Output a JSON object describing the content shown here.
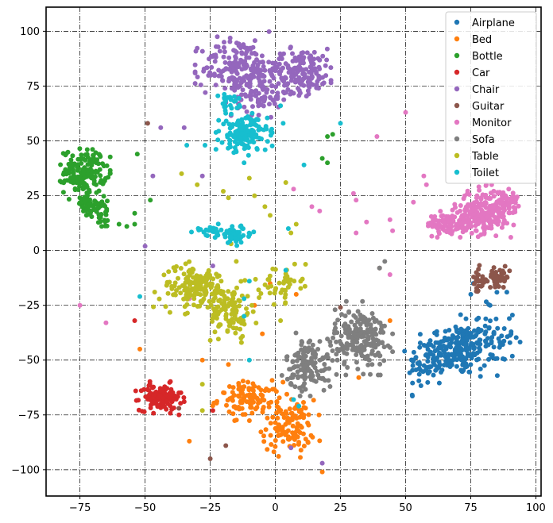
{
  "chart_data": {
    "type": "scatter",
    "title": "",
    "xlabel": "",
    "ylabel": "",
    "xlim": [
      -88,
      102
    ],
    "ylim": [
      -112,
      111
    ],
    "xticks": [
      -75,
      -50,
      -25,
      0,
      25,
      50,
      75,
      100
    ],
    "yticks": [
      -100,
      -75,
      -50,
      -25,
      0,
      25,
      50,
      75,
      100
    ],
    "xtick_labels": [
      "−75",
      "−50",
      "−25",
      "0",
      "25",
      "50",
      "75",
      "100"
    ],
    "ytick_labels": [
      "−100",
      "−75",
      "−50",
      "−25",
      "0",
      "25",
      "50",
      "75",
      "100"
    ],
    "grid": true,
    "legend_position": "top-right",
    "series": [
      {
        "name": "Airplane",
        "color": "#1f77b4",
        "count": 300,
        "clusters": [
          {
            "cx": 70,
            "cy": -45,
            "sx": 6,
            "sy": 6,
            "w": 0.55
          },
          {
            "cx": 58,
            "cy": -52,
            "sx": 3.5,
            "sy": 6,
            "w": 0.2
          },
          {
            "cx": 82,
            "cy": -40,
            "sx": 5,
            "sy": 9,
            "w": 0.25
          }
        ],
        "outliers": [
          [
            75,
            -20
          ],
          [
            76,
            -15
          ]
        ]
      },
      {
        "name": "Bed",
        "color": "#ff7f0e",
        "count": 230,
        "clusters": [
          {
            "cx": 5,
            "cy": -80,
            "sx": 5,
            "sy": 6,
            "w": 0.5
          },
          {
            "cx": -10,
            "cy": -68,
            "sx": 6,
            "sy": 4,
            "w": 0.45
          }
        ],
        "outliers": [
          [
            -18,
            -52
          ],
          [
            -8,
            -25
          ],
          [
            -5,
            -38
          ],
          [
            -33,
            -87
          ],
          [
            -52,
            -45
          ],
          [
            -28,
            -50
          ],
          [
            18,
            -101
          ],
          [
            8,
            -20
          ],
          [
            -2,
            -15
          ],
          [
            44,
            -32
          ],
          [
            32,
            -58
          ]
        ]
      },
      {
        "name": "Bottle",
        "color": "#2ca02c",
        "count": 220,
        "clusters": [
          {
            "cx": -73,
            "cy": 36,
            "sx": 4,
            "sy": 5,
            "w": 0.7
          },
          {
            "cx": -72,
            "cy": 20,
            "sx": 3,
            "sy": 3,
            "w": 0.2
          },
          {
            "cx": -66,
            "cy": 16,
            "sx": 2,
            "sy": 3,
            "w": 0.1
          }
        ],
        "outliers": [
          [
            -54,
            17
          ],
          [
            -54,
            12
          ],
          [
            -60,
            12
          ],
          [
            -57,
            11
          ],
          [
            -53,
            44
          ],
          [
            -48,
            23
          ],
          [
            18,
            42
          ],
          [
            20,
            40
          ],
          [
            20,
            52
          ],
          [
            22,
            53
          ]
        ]
      },
      {
        "name": "Car",
        "color": "#d62728",
        "count": 120,
        "clusters": [
          {
            "cx": -44,
            "cy": -67,
            "sx": 4,
            "sy": 3,
            "w": 1.0
          }
        ],
        "outliers": [
          [
            -54,
            -32
          ],
          [
            -24,
            -73
          ],
          [
            -37,
            -75
          ]
        ]
      },
      {
        "name": "Chair",
        "color": "#9467bd",
        "count": 420,
        "clusters": [
          {
            "cx": -14,
            "cy": 83,
            "sx": 7,
            "sy": 7,
            "w": 0.45
          },
          {
            "cx": 10,
            "cy": 82,
            "sx": 7,
            "sy": 5,
            "w": 0.4
          },
          {
            "cx": -5,
            "cy": 70,
            "sx": 5,
            "sy": 4,
            "w": 0.15
          }
        ],
        "outliers": [
          [
            -44,
            56
          ],
          [
            -35,
            56
          ],
          [
            -28,
            34
          ],
          [
            -47,
            34
          ],
          [
            -50,
            2
          ],
          [
            -24,
            -7
          ],
          [
            6,
            -90
          ],
          [
            18,
            -97
          ]
        ]
      },
      {
        "name": "Guitar",
        "color": "#8c564b",
        "count": 70,
        "clusters": [
          {
            "cx": 86,
            "cy": -12,
            "sx": 2,
            "sy": 2,
            "w": 0.6
          },
          {
            "cx": 78,
            "cy": -14,
            "sx": 1.5,
            "sy": 3,
            "w": 0.4
          }
        ],
        "outliers": [
          [
            -49,
            58
          ],
          [
            -37,
            -72
          ],
          [
            -19,
            -89
          ],
          [
            25,
            -26
          ],
          [
            -25,
            -95
          ],
          [
            40,
            -8
          ]
        ]
      },
      {
        "name": "Monitor",
        "color": "#e377c2",
        "count": 360,
        "clusters": [
          {
            "cx": 80,
            "cy": 18,
            "sx": 5,
            "sy": 5,
            "w": 0.55
          },
          {
            "cx": 68,
            "cy": 12,
            "sx": 5,
            "sy": 2.5,
            "w": 0.3
          },
          {
            "cx": 88,
            "cy": 22,
            "sx": 2.5,
            "sy": 2.5,
            "w": 0.15
          }
        ],
        "outliers": [
          [
            50,
            63
          ],
          [
            39,
            52
          ],
          [
            30,
            26
          ],
          [
            31,
            23
          ],
          [
            35,
            13
          ],
          [
            44,
            14
          ],
          [
            45,
            9
          ],
          [
            31,
            8
          ],
          [
            44,
            -11
          ],
          [
            53,
            22
          ],
          [
            57,
            34
          ],
          [
            58,
            30
          ],
          [
            -75,
            -25
          ],
          [
            -65,
            -33
          ],
          [
            -33,
            -22
          ],
          [
            14,
            20
          ],
          [
            17,
            18
          ],
          [
            7,
            28
          ]
        ]
      },
      {
        "name": "Sofa",
        "color": "#7f7f7f",
        "count": 330,
        "clusters": [
          {
            "cx": 33,
            "cy": -40,
            "sx": 5,
            "sy": 7,
            "w": 0.6
          },
          {
            "cx": 13,
            "cy": -52,
            "sx": 4.5,
            "sy": 6,
            "w": 0.4
          }
        ],
        "outliers": [
          [
            40,
            -8
          ],
          [
            42,
            -5
          ],
          [
            10,
            -43
          ]
        ]
      },
      {
        "name": "Table",
        "color": "#bcbd22",
        "count": 300,
        "clusters": [
          {
            "cx": -30,
            "cy": -17,
            "sx": 7,
            "sy": 5,
            "w": 0.55
          },
          {
            "cx": -17,
            "cy": -28,
            "sx": 4,
            "sy": 6,
            "w": 0.3
          },
          {
            "cx": 2,
            "cy": -15,
            "sx": 4,
            "sy": 4,
            "w": 0.15
          }
        ],
        "outliers": [
          [
            -20,
            27
          ],
          [
            -18,
            24
          ],
          [
            -10,
            33
          ],
          [
            -8,
            25
          ],
          [
            -4,
            20
          ],
          [
            -2,
            16
          ],
          [
            4,
            31
          ],
          [
            6,
            8
          ],
          [
            8,
            12
          ],
          [
            2,
            -32
          ],
          [
            -13,
            -42
          ],
          [
            -9,
            -25
          ],
          [
            -25,
            -41
          ],
          [
            -28,
            -61
          ],
          [
            -28,
            -73
          ],
          [
            -36,
            35
          ],
          [
            -30,
            30
          ],
          [
            -15,
            -5
          ],
          [
            -17,
            3
          ]
        ]
      },
      {
        "name": "Toilet",
        "color": "#17becf",
        "count": 260,
        "clusters": [
          {
            "cx": -12,
            "cy": 53,
            "sx": 4.5,
            "sy": 4,
            "w": 0.6
          },
          {
            "cx": -15,
            "cy": 7,
            "sx": 3,
            "sy": 2,
            "w": 0.2
          },
          {
            "cx": -25,
            "cy": 9,
            "sx": 3,
            "sy": 1.5,
            "w": 0.1
          },
          {
            "cx": -18,
            "cy": 67,
            "sx": 2,
            "sy": 2,
            "w": 0.1
          }
        ],
        "outliers": [
          [
            -34,
            48
          ],
          [
            -27,
            48
          ],
          [
            -15,
            45
          ],
          [
            -12,
            40
          ],
          [
            2,
            66
          ],
          [
            3,
            58
          ],
          [
            5,
            10
          ],
          [
            11,
            39
          ],
          [
            25,
            58
          ],
          [
            -52,
            -21
          ],
          [
            4,
            -9
          ],
          [
            9,
            -71
          ],
          [
            7,
            -68
          ],
          [
            -10,
            -14
          ],
          [
            -12,
            -22
          ],
          [
            -12,
            -30
          ],
          [
            -10,
            -50
          ]
        ]
      }
    ]
  }
}
